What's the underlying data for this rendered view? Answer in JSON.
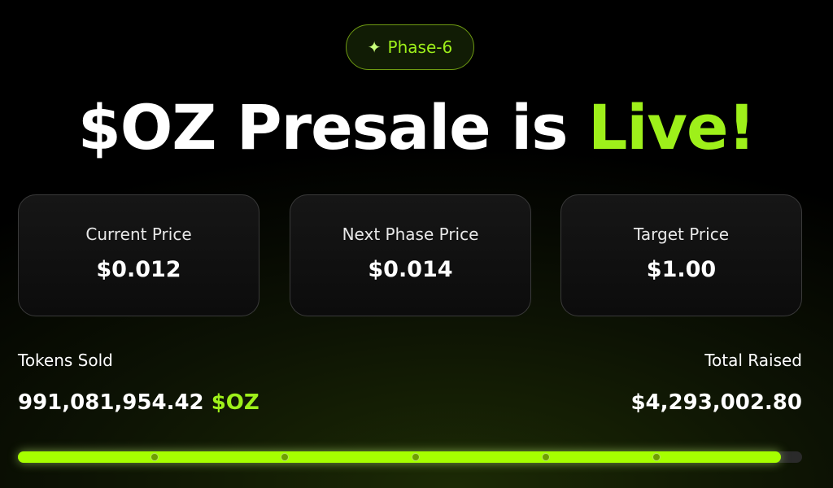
{
  "badge": {
    "icon": "sparkle-icon",
    "label": "Phase-6"
  },
  "title": {
    "main": "$OZ Presale is ",
    "highlight": "Live!"
  },
  "cards": [
    {
      "label": "Current Price",
      "value": "$0.012"
    },
    {
      "label": "Next Phase Price",
      "value": "$0.014"
    },
    {
      "label": "Target Price",
      "value": "$1.00"
    }
  ],
  "tokens_sold": {
    "label": "Tokens Sold",
    "value": "991,081,954.42",
    "unit": "$OZ"
  },
  "total_raised": {
    "label": "Total Raised",
    "value": "$4,293,002.80"
  },
  "progress": {
    "percent": 97.3,
    "milestones_percent": [
      17.4,
      34,
      50.7,
      67.3,
      81.4
    ]
  },
  "colors": {
    "accent": "#9ef01a",
    "bar": "#a6ff00"
  }
}
